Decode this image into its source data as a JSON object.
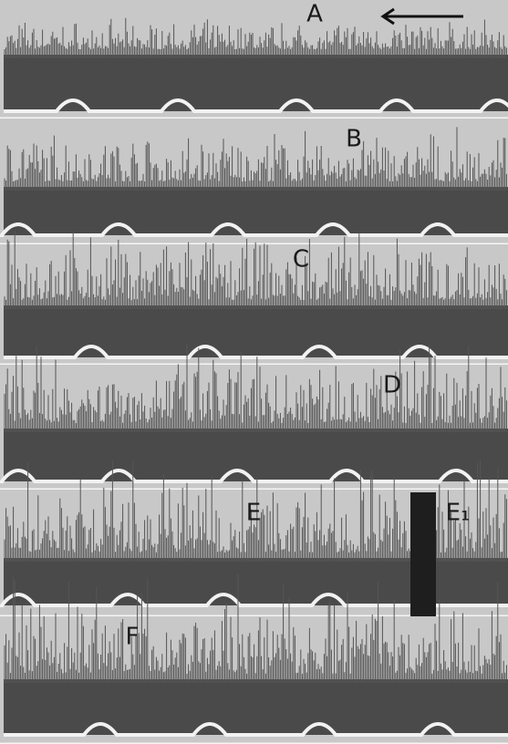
{
  "panels": [
    {
      "labels": [
        "A"
      ]
    },
    {
      "labels": [
        "B"
      ]
    },
    {
      "labels": [
        "C"
      ]
    },
    {
      "labels": [
        "D"
      ]
    },
    {
      "labels": [
        "E",
        "E₁"
      ]
    },
    {
      "labels": [
        "F"
      ]
    }
  ]
}
